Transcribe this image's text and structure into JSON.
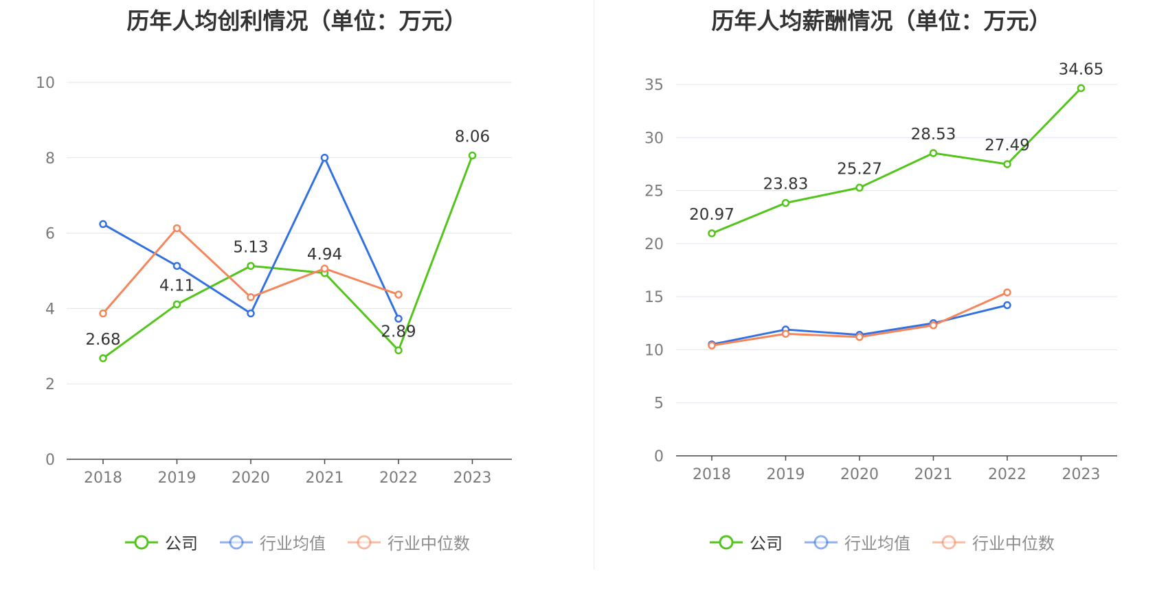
{
  "chart_data": [
    {
      "type": "line",
      "title": "历年人均创利情况（单位：万元）",
      "categories": [
        "2018",
        "2019",
        "2020",
        "2021",
        "2022",
        "2023"
      ],
      "ylim": [
        0,
        10
      ],
      "yticks": [
        0,
        2,
        4,
        6,
        8,
        10
      ],
      "grid": true,
      "legend_position": "bottom-center",
      "series": [
        {
          "name": "公司",
          "color": "#52c41a",
          "values": [
            2.68,
            4.11,
            5.13,
            4.94,
            2.89,
            8.06
          ],
          "labels": [
            "2.68",
            "4.11",
            "5.13",
            "4.94",
            "2.89",
            "8.06"
          ]
        },
        {
          "name": "行业均值",
          "color": "#3370e0",
          "values": [
            6.24,
            5.13,
            3.87,
            8.0,
            3.73,
            null
          ],
          "labels": []
        },
        {
          "name": "行业中位数",
          "color": "#f5855a",
          "values": [
            3.87,
            6.13,
            4.3,
            5.06,
            4.37,
            null
          ],
          "labels": []
        }
      ]
    },
    {
      "type": "line",
      "title": "历年人均薪酬情况（单位：万元）",
      "categories": [
        "2018",
        "2019",
        "2020",
        "2021",
        "2022",
        "2023"
      ],
      "ylim": [
        0,
        35
      ],
      "yticks": [
        0,
        5,
        10,
        15,
        20,
        25,
        30,
        35
      ],
      "grid": true,
      "legend_position": "bottom-center",
      "series": [
        {
          "name": "公司",
          "color": "#52c41a",
          "values": [
            20.97,
            23.83,
            25.27,
            28.53,
            27.49,
            34.65
          ],
          "labels": [
            "20.97",
            "23.83",
            "25.27",
            "28.53",
            "27.49",
            "34.65"
          ]
        },
        {
          "name": "行业均值",
          "color": "#3370e0",
          "values": [
            10.5,
            11.9,
            11.4,
            12.5,
            14.2,
            null
          ],
          "labels": []
        },
        {
          "name": "行业中位数",
          "color": "#f5855a",
          "values": [
            10.4,
            11.5,
            11.2,
            12.3,
            15.4,
            null
          ],
          "labels": []
        }
      ]
    }
  ]
}
